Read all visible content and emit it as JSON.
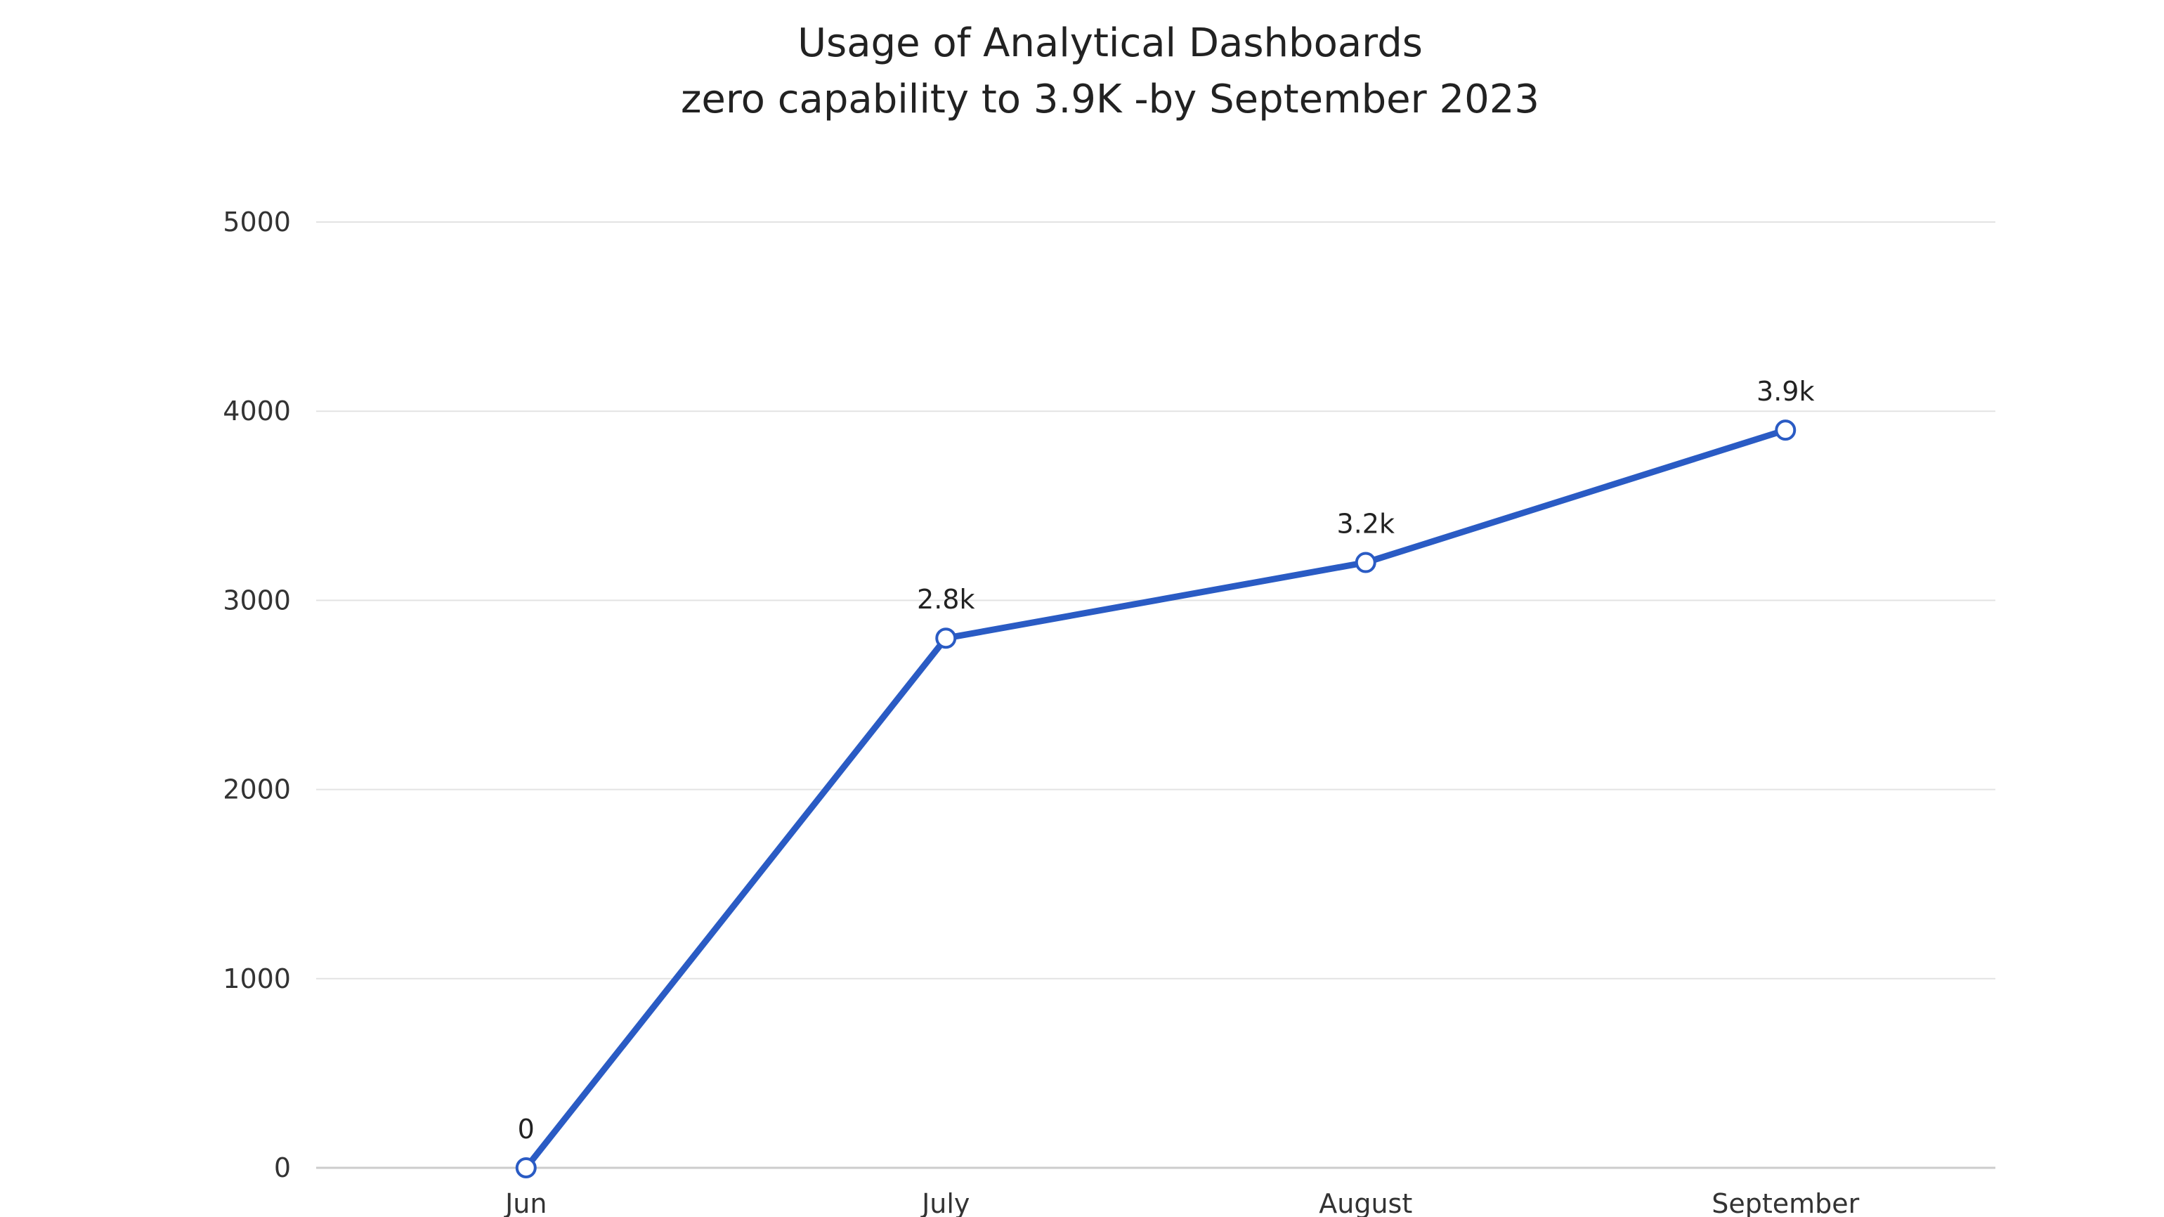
{
  "chart_data": {
    "type": "line",
    "title": "Usage of Analytical Dashboards",
    "subtitle": "zero capability to 3.9K -by September 2023",
    "xlabel": "",
    "ylabel": "",
    "categories": [
      "Jun",
      "July",
      "August",
      "September"
    ],
    "series": [
      {
        "values": [
          0,
          2800,
          3200,
          3900
        ],
        "data_labels": [
          "0",
          "2.8k",
          "3.2k",
          "3.9k"
        ],
        "color": "#2a5bc4",
        "marker": "hollow-circle"
      }
    ],
    "ylim": [
      0,
      5000
    ],
    "yticks": [
      0,
      1000,
      2000,
      3000,
      4000,
      5000
    ],
    "ytick_labels": [
      "0",
      "1000",
      "2000",
      "3000",
      "4000",
      "5000"
    ],
    "grid": "horizontal",
    "gridline_color": "#e3e3e3",
    "axis_line_color": "#cccccc",
    "legend": "none"
  }
}
